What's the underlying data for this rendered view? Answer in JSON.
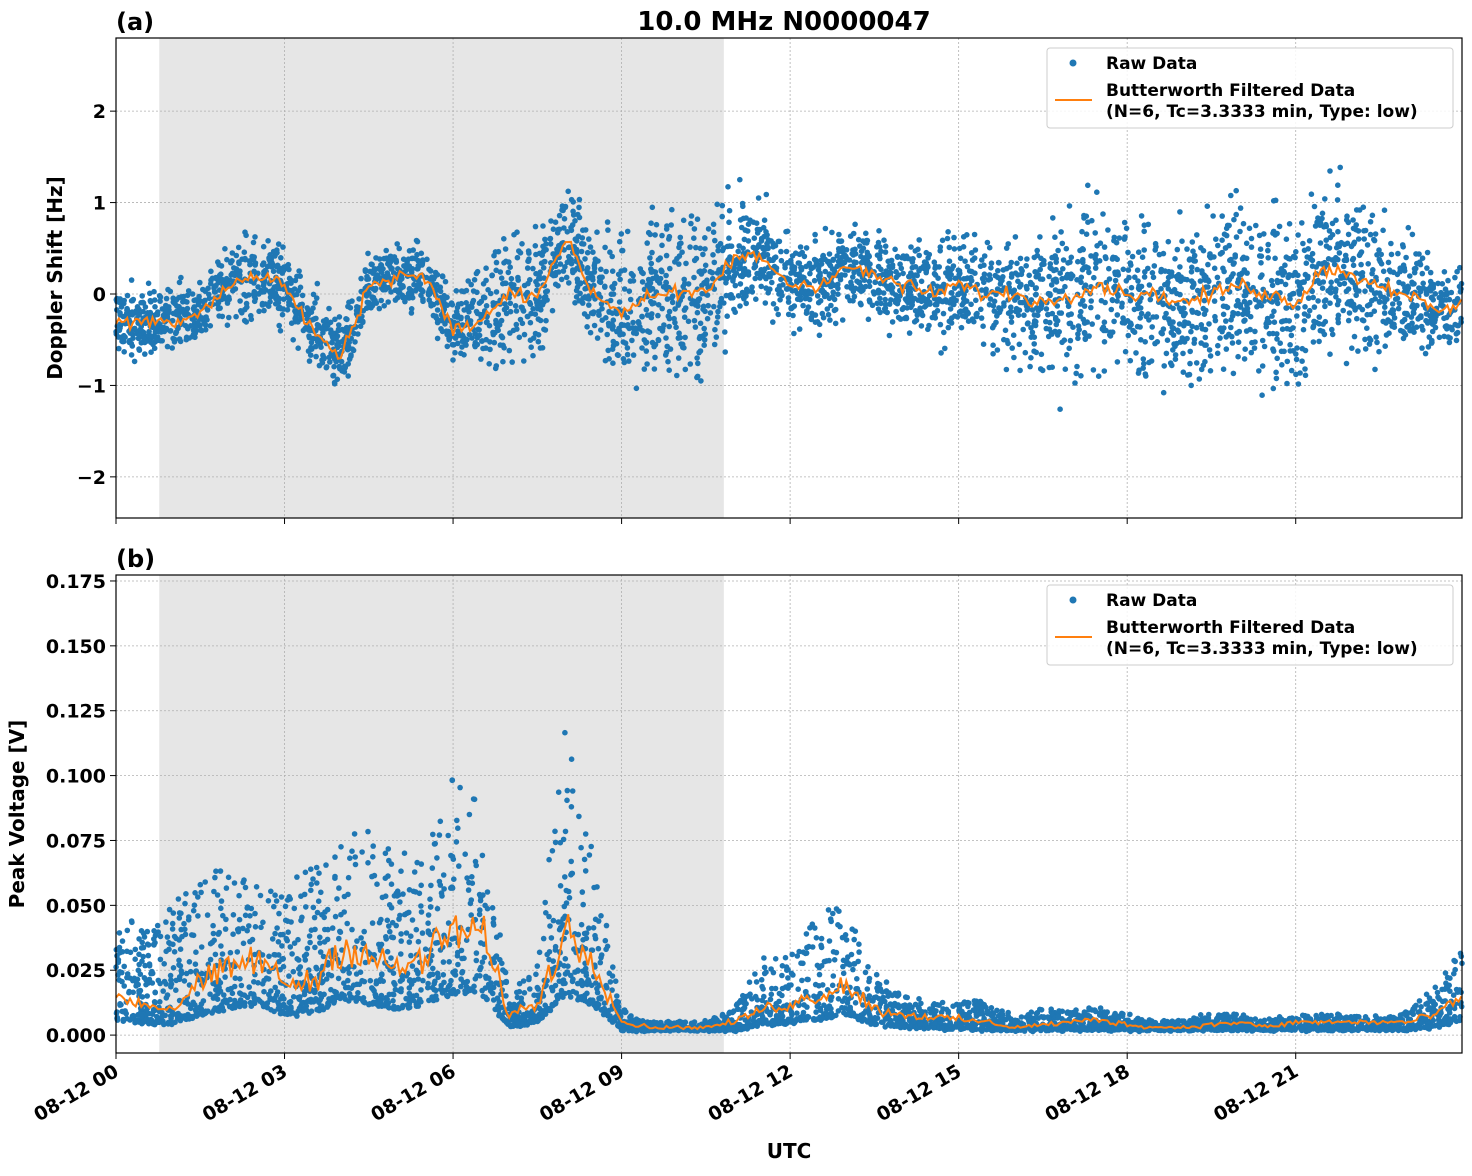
{
  "figure": {
    "title": "10.0 MHz N0000047",
    "xlabel": "UTC"
  },
  "colors": {
    "raw": "#1f77b4",
    "filtered": "#ff7f0e",
    "shade": "#e6e6e6"
  },
  "x_ticks": [
    0,
    3,
    6,
    9,
    12,
    15,
    18,
    21
  ],
  "x_tick_labels": [
    "08-12 00",
    "08-12 03",
    "08-12 06",
    "08-12 09",
    "08-12 12",
    "08-12 15",
    "08-12 18",
    "08-12 21"
  ],
  "xlim_hours": [
    0,
    23.96
  ],
  "shaded_interval_hours": [
    0.77,
    10.82
  ],
  "legend": {
    "raw": "Raw Data",
    "filtered_line1": "Butterworth Filtered Data",
    "filtered_line2": "(N=6, Tc=3.3333 min, Type: low)",
    "placement": "top-right"
  },
  "chart_data": [
    {
      "type": "scatter+line",
      "panel_label": "(a)",
      "ylabel": "Doppler Shift [Hz]",
      "ylim": [
        -2.45,
        2.8
      ],
      "y_ticks": [
        -2,
        -1,
        0,
        1,
        2
      ],
      "y_tick_labels": [
        "−2",
        "−1",
        "0",
        "1",
        "2"
      ],
      "grid": true,
      "x_hours": [
        0,
        0.5,
        1,
        1.5,
        2,
        2.5,
        3,
        3.5,
        4,
        4.5,
        5,
        5.5,
        6,
        6.5,
        7,
        7.5,
        8,
        8.5,
        9,
        9.5,
        10,
        10.5,
        11,
        11.5,
        12,
        12.5,
        13,
        13.5,
        14,
        14.5,
        15,
        15.5,
        16,
        16.5,
        17,
        17.5,
        18,
        18.5,
        19,
        19.5,
        20,
        20.5,
        21,
        21.5,
        22,
        22.5,
        23,
        23.5,
        24
      ],
      "series": [
        {
          "name": "Butterworth Filtered Data",
          "values": [
            -0.3,
            -0.3,
            -0.3,
            -0.2,
            0.1,
            0.2,
            0.1,
            -0.4,
            -0.7,
            0.1,
            0.2,
            0.2,
            -0.4,
            -0.3,
            0.0,
            0.0,
            0.6,
            0.0,
            -0.2,
            0.0,
            0.0,
            0.0,
            0.4,
            0.4,
            0.1,
            0.1,
            0.3,
            0.2,
            0.1,
            0.0,
            0.1,
            0.0,
            0.0,
            -0.1,
            0.0,
            0.1,
            0.0,
            0.0,
            -0.1,
            0.0,
            0.1,
            0.0,
            -0.1,
            0.3,
            0.2,
            0.1,
            0.0,
            -0.2,
            -0.1
          ]
        },
        {
          "name": "Raw Data",
          "spread": [
            0.4,
            0.4,
            0.4,
            0.4,
            0.45,
            0.5,
            0.5,
            0.45,
            0.45,
            0.4,
            0.4,
            0.4,
            0.4,
            0.6,
            0.8,
            0.8,
            0.6,
            0.7,
            1.0,
            1.0,
            1.0,
            1.0,
            0.8,
            0.6,
            0.5,
            0.5,
            0.5,
            0.5,
            0.5,
            0.6,
            0.6,
            0.6,
            0.8,
            1.0,
            1.0,
            1.0,
            1.0,
            1.0,
            1.0,
            1.0,
            1.0,
            1.0,
            1.0,
            1.0,
            1.0,
            1.0,
            0.7,
            0.5,
            0.5
          ]
        }
      ]
    },
    {
      "type": "scatter+line",
      "panel_label": "(b)",
      "ylabel": "Peak Voltage [V]",
      "ylim": [
        -0.0069,
        0.1773
      ],
      "y_ticks": [
        0,
        0.025,
        0.05,
        0.075,
        0.1,
        0.125,
        0.15,
        0.175
      ],
      "y_tick_labels": [
        "0.000",
        "0.025",
        "0.050",
        "0.075",
        "0.100",
        "0.125",
        "0.150",
        "0.175"
      ],
      "grid": true,
      "x_hours": [
        0,
        0.5,
        1,
        1.5,
        2,
        2.5,
        3,
        3.5,
        4,
        4.5,
        5,
        5.5,
        6,
        6.5,
        7,
        7.5,
        8,
        8.5,
        9,
        9.5,
        10,
        10.5,
        11,
        11.5,
        12,
        12.5,
        13,
        13.5,
        14,
        14.5,
        15,
        15.5,
        16,
        16.5,
        17,
        17.5,
        18,
        18.5,
        19,
        19.5,
        20,
        20.5,
        21,
        21.5,
        22,
        22.5,
        23,
        23.5,
        24
      ],
      "series": [
        {
          "name": "Butterworth Filtered Data",
          "values": [
            0.015,
            0.012,
            0.01,
            0.02,
            0.025,
            0.03,
            0.02,
            0.02,
            0.035,
            0.03,
            0.025,
            0.03,
            0.04,
            0.04,
            0.008,
            0.012,
            0.04,
            0.03,
            0.005,
            0.003,
            0.003,
            0.003,
            0.005,
            0.01,
            0.012,
            0.015,
            0.02,
            0.01,
            0.008,
            0.007,
            0.006,
            0.005,
            0.003,
            0.004,
            0.005,
            0.006,
            0.004,
            0.003,
            0.003,
            0.004,
            0.005,
            0.003,
            0.005,
            0.005,
            0.005,
            0.005,
            0.005,
            0.008,
            0.015
          ]
        },
        {
          "name": "Raw Data",
          "upper": [
            0.05,
            0.04,
            0.05,
            0.06,
            0.07,
            0.06,
            0.06,
            0.065,
            0.075,
            0.08,
            0.07,
            0.07,
            0.1,
            0.09,
            0.015,
            0.03,
            0.12,
            0.07,
            0.01,
            0.005,
            0.005,
            0.006,
            0.01,
            0.03,
            0.03,
            0.05,
            0.05,
            0.025,
            0.015,
            0.013,
            0.015,
            0.012,
            0.008,
            0.01,
            0.01,
            0.01,
            0.008,
            0.006,
            0.006,
            0.008,
            0.008,
            0.006,
            0.008,
            0.008,
            0.008,
            0.008,
            0.009,
            0.02,
            0.035
          ]
        }
      ]
    }
  ]
}
